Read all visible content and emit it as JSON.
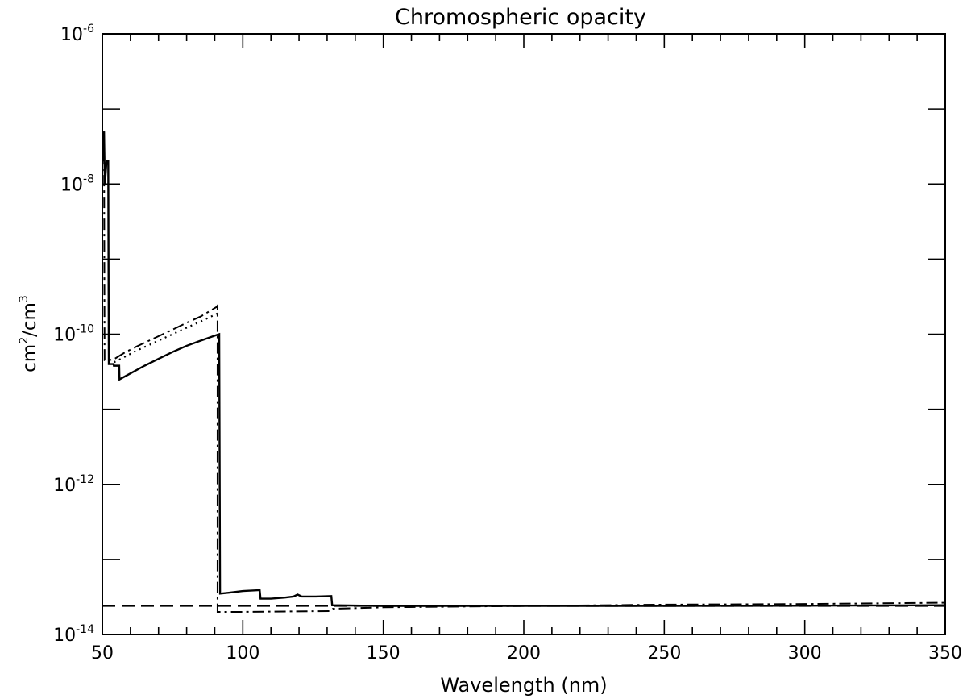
{
  "chart_data": {
    "type": "line",
    "title": "Chromospheric opacity",
    "xlabel": "Wavelength (nm)",
    "ylabel": {
      "base1": "cm",
      "exp1": "2",
      "sep": "/cm",
      "exp2": "3"
    },
    "xlim": [
      50,
      350
    ],
    "ylim": [
      1e-14,
      1e-06
    ],
    "y_scale": "log",
    "grid": false,
    "legend": "none",
    "x_ticks": [
      "50",
      "100",
      "150",
      "200",
      "250",
      "300",
      "350"
    ],
    "y_ticks": [
      {
        "base": "10",
        "exp": "-6"
      },
      {
        "base": "10",
        "exp": "-8"
      },
      {
        "base": "10",
        "exp": "-10"
      },
      {
        "base": "10",
        "exp": "-12"
      },
      {
        "base": "10",
        "exp": "-14"
      }
    ],
    "series": [
      {
        "style": "solid",
        "points": [
          [
            50.2,
            2e-08
          ],
          [
            50.6,
            5e-08
          ],
          [
            50.9,
            1e-08
          ],
          [
            51.5,
            2e-08
          ],
          [
            52.1,
            2e-08
          ],
          [
            52.3,
            4e-11
          ],
          [
            54,
            4e-11
          ],
          [
            54.1,
            3.8e-11
          ],
          [
            56,
            3.8e-11
          ],
          [
            56.1,
            2.5e-11
          ],
          [
            60,
            3e-11
          ],
          [
            65,
            3.8e-11
          ],
          [
            70,
            4.7e-11
          ],
          [
            75,
            5.8e-11
          ],
          [
            80,
            7e-11
          ],
          [
            85,
            8.2e-11
          ],
          [
            91.2,
            9.9e-11
          ],
          [
            91.6,
            1e-10
          ],
          [
            91.9,
            3.5e-14
          ],
          [
            95,
            3.6e-14
          ],
          [
            100,
            3.8e-14
          ],
          [
            106,
            3.9e-14
          ],
          [
            106.3,
            3e-14
          ],
          [
            110,
            3e-14
          ],
          [
            115,
            3.1e-14
          ],
          [
            118,
            3.2e-14
          ],
          [
            119.5,
            3.4e-14
          ],
          [
            121,
            3.2e-14
          ],
          [
            126,
            3.2e-14
          ],
          [
            131.5,
            3.25e-14
          ],
          [
            131.8,
            2.45e-14
          ],
          [
            150,
            2.4e-14
          ],
          [
            200,
            2.4e-14
          ],
          [
            250,
            2.4e-14
          ],
          [
            300,
            2.42e-14
          ],
          [
            350,
            2.45e-14
          ]
        ]
      },
      {
        "style": "dotted",
        "points": [
          [
            52.3,
            4e-11
          ],
          [
            54,
            4.2e-11
          ],
          [
            58,
            5e-11
          ],
          [
            62,
            6e-11
          ],
          [
            66,
            7e-11
          ],
          [
            70,
            8.2e-11
          ],
          [
            75,
            1e-10
          ],
          [
            80,
            1.22e-10
          ],
          [
            85,
            1.48e-10
          ],
          [
            91.2,
            1.9e-10
          ]
        ]
      },
      {
        "style": "dashed",
        "points": [
          [
            50,
            2.4e-14
          ],
          [
            100,
            2.4e-14
          ],
          [
            150,
            2.4e-14
          ],
          [
            200,
            2.4e-14
          ],
          [
            250,
            2.4e-14
          ],
          [
            300,
            2.4e-14
          ],
          [
            350,
            2.4e-14
          ]
        ]
      },
      {
        "style": "dashdot",
        "points": [
          [
            50.6,
            5e-08
          ],
          [
            50.7,
            1e-09
          ],
          [
            50.8,
            4.5e-11
          ],
          [
            52,
            4.5e-11
          ],
          [
            54,
            4.6e-11
          ],
          [
            58,
            5.7e-11
          ],
          [
            62,
            6.8e-11
          ],
          [
            66,
            8e-11
          ],
          [
            70,
            9.4e-11
          ],
          [
            75,
            1.15e-10
          ],
          [
            80,
            1.42e-10
          ],
          [
            85,
            1.72e-10
          ],
          [
            90.6,
            2.3e-10
          ],
          [
            91,
            2.4e-10
          ],
          [
            91,
            2e-14
          ],
          [
            100,
            2e-14
          ],
          [
            131,
            2.05e-14
          ],
          [
            132,
            2.2e-14
          ],
          [
            150,
            2.3e-14
          ],
          [
            200,
            2.4e-14
          ],
          [
            250,
            2.5e-14
          ],
          [
            300,
            2.55e-14
          ],
          [
            350,
            2.65e-14
          ]
        ]
      }
    ]
  }
}
